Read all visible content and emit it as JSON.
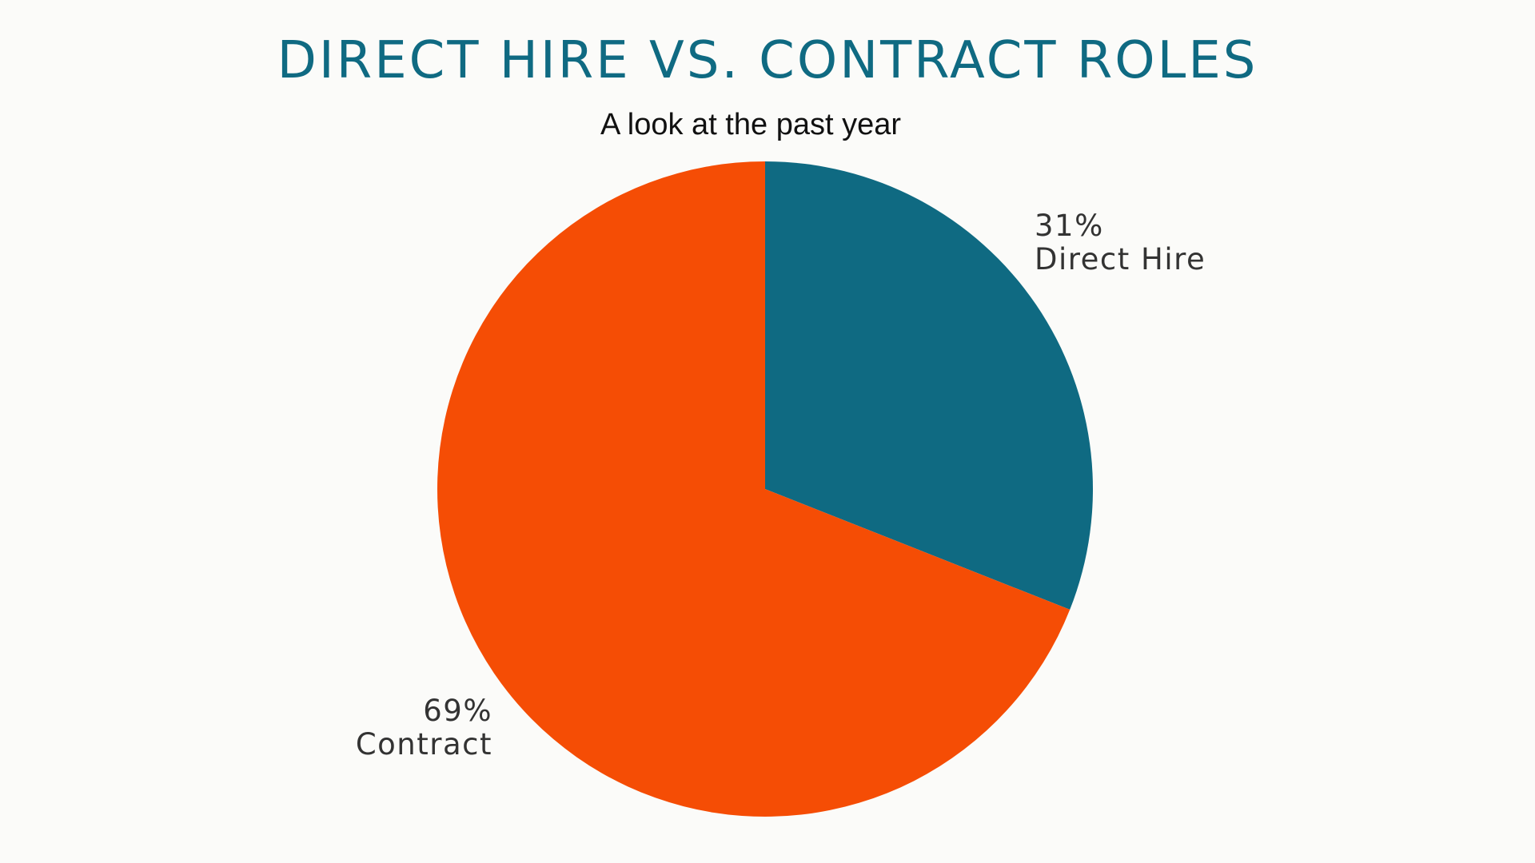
{
  "chart_data": {
    "type": "pie",
    "title": "DIRECT HIRE VS. CONTRACT ROLES",
    "subtitle": "A look at the past year",
    "slices": [
      {
        "label": "Direct Hire",
        "percent_label": "31%",
        "value": 31,
        "color": "#0f6a82"
      },
      {
        "label": "Contract",
        "percent_label": "69%",
        "value": 69,
        "color": "#f54d05"
      }
    ],
    "start_angle": "12 o'clock",
    "direction": "clockwise"
  },
  "colors": {
    "title": "#0f6a82",
    "background": "#fbfbf9"
  }
}
